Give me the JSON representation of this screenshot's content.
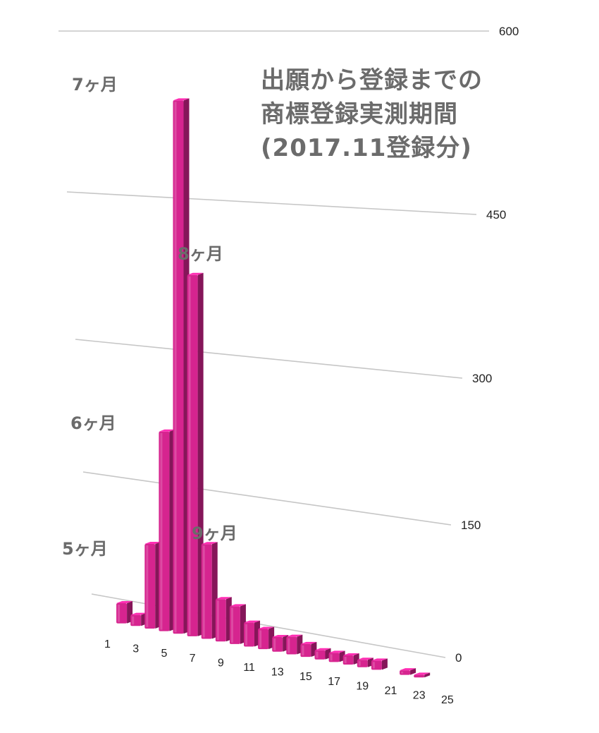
{
  "chart_data": {
    "type": "bar",
    "title": [
      "出願から登録までの",
      "商標登録実測期間",
      "(2017.11登録分)"
    ],
    "categories": [
      "1",
      "2",
      "3",
      "4",
      "5",
      "6",
      "7",
      "8",
      "9",
      "10",
      "11",
      "12",
      "13",
      "14",
      "15",
      "16",
      "17",
      "18",
      "19",
      "20",
      "21",
      "22",
      "23",
      "24",
      "25"
    ],
    "x_tick_labels": [
      "1",
      "3",
      "5",
      "7",
      "9",
      "11",
      "13",
      "15",
      "17",
      "19",
      "21",
      "23",
      "25"
    ],
    "values": [
      0,
      22,
      12,
      92,
      217,
      580,
      393,
      103,
      46,
      41,
      26,
      22,
      16,
      19,
      14,
      10,
      10,
      10,
      8,
      10,
      0,
      5,
      3,
      0,
      0
    ],
    "ylim": [
      0,
      600
    ],
    "y_ticks": [
      0,
      150,
      300,
      450,
      600
    ],
    "xlabel": "",
    "ylabel": "",
    "grid": true,
    "bar_color": "#d6248f",
    "annotations": [
      {
        "text": "5ヶ月",
        "category": "5"
      },
      {
        "text": "6ヶ月",
        "category": "6"
      },
      {
        "text": "7ヶ月",
        "category": "7"
      },
      {
        "text": "8ヶ月",
        "category": "8"
      },
      {
        "text": "9ヶ月",
        "category": "9"
      }
    ]
  }
}
